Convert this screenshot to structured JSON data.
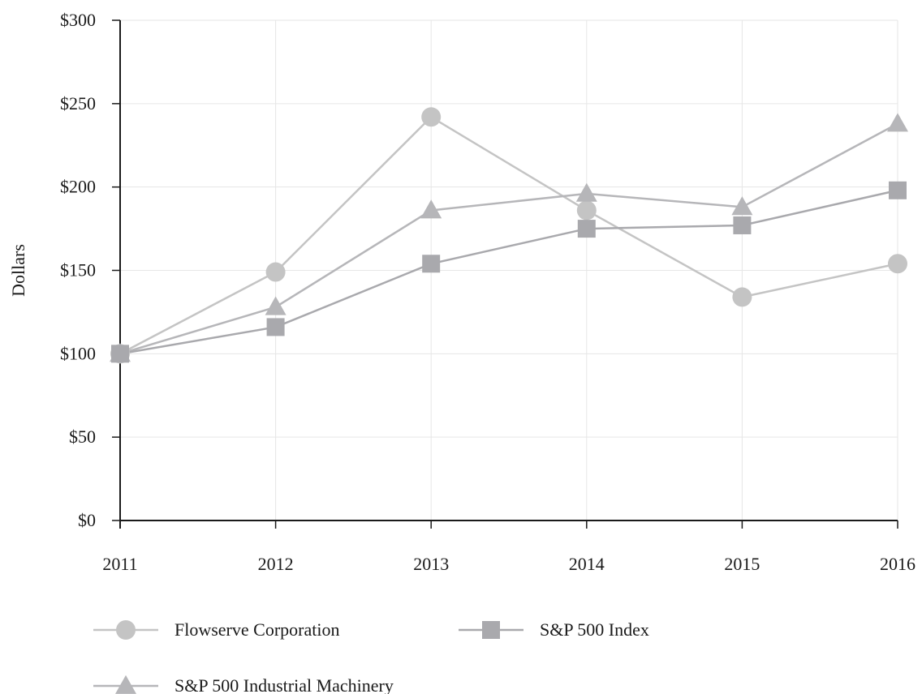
{
  "chart_data": {
    "type": "line",
    "title": "",
    "xlabel": "",
    "ylabel": "Dollars",
    "categories": [
      "2011",
      "2012",
      "2013",
      "2014",
      "2015",
      "2016"
    ],
    "ylim": [
      0,
      300
    ],
    "yticks": [
      0,
      50,
      100,
      150,
      200,
      250,
      300
    ],
    "ytick_labels": [
      "$0",
      "$50",
      "$100",
      "$150",
      "$200",
      "$250",
      "$300"
    ],
    "grid": true,
    "legend_position": "bottom-left",
    "series": [
      {
        "name": "Flowserve Corporation",
        "marker": "circle",
        "color": "#c4c4c4",
        "values": [
          100,
          149,
          242,
          186,
          134,
          154
        ]
      },
      {
        "name": "S&P 500 Index",
        "marker": "square",
        "color": "#a9a9ad",
        "values": [
          100,
          116,
          154,
          175,
          177,
          198
        ]
      },
      {
        "name": "S&P 500 Industrial Machinery",
        "marker": "triangle",
        "color": "#b6b6b9",
        "values": [
          100,
          128,
          186,
          196,
          188,
          238
        ]
      }
    ]
  }
}
